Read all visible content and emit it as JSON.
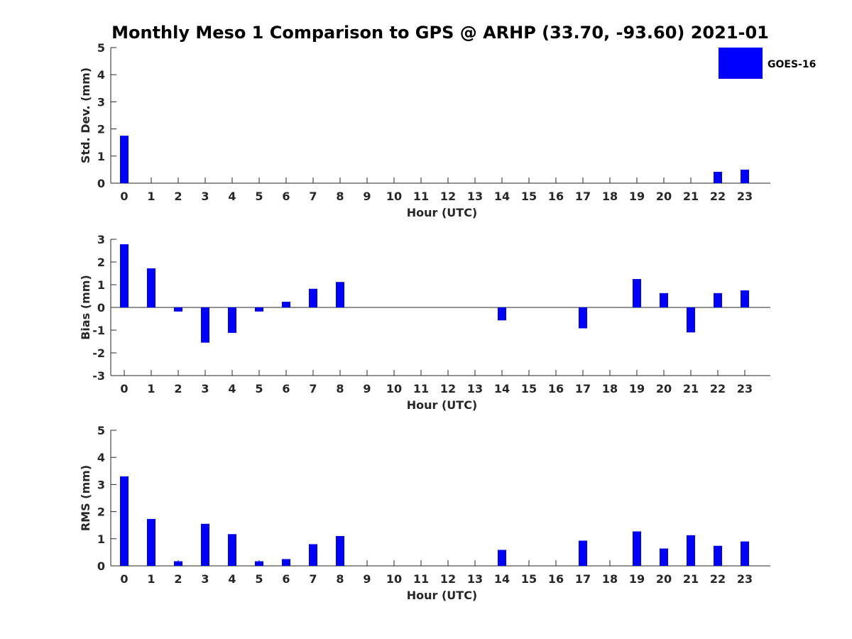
{
  "chart_data": {
    "title": "Monthly Meso 1 Comparison to GPS @ ARHP (33.70, -93.60) 2021-01",
    "legend": {
      "label": "GOES-16",
      "color": "#0000ff",
      "placement": "top-right"
    },
    "bar_color": "#0000ff",
    "panels": [
      {
        "type": "bar",
        "xlabel": "Hour (UTC)",
        "ylabel": "Std. Dev. (mm)",
        "ylim": [
          0,
          5
        ],
        "yticks": [
          0,
          1,
          2,
          3,
          4,
          5
        ],
        "categories": [
          0,
          1,
          2,
          3,
          4,
          5,
          6,
          7,
          8,
          9,
          10,
          11,
          12,
          13,
          14,
          15,
          16,
          17,
          18,
          19,
          20,
          21,
          22,
          23
        ],
        "values": [
          1.75,
          0,
          0,
          0,
          0,
          0,
          0,
          0,
          0,
          0,
          0,
          0,
          0,
          0,
          0,
          0,
          0,
          0,
          0,
          0,
          0,
          0,
          0.42,
          0.5
        ],
        "grid": false
      },
      {
        "type": "bar",
        "xlabel": "Hour (UTC)",
        "ylabel": "Bias (mm)",
        "ylim": [
          -3,
          3
        ],
        "yticks": [
          -3,
          -2,
          -1,
          0,
          1,
          2,
          3
        ],
        "categories": [
          0,
          1,
          2,
          3,
          4,
          5,
          6,
          7,
          8,
          9,
          10,
          11,
          12,
          13,
          14,
          15,
          16,
          17,
          18,
          19,
          20,
          21,
          22,
          23
        ],
        "values": [
          2.78,
          1.72,
          -0.18,
          -1.55,
          -1.12,
          -0.18,
          0.25,
          0.82,
          1.12,
          0,
          0,
          0,
          0,
          0,
          -0.57,
          0,
          0,
          -0.92,
          0,
          1.25,
          0.63,
          -1.1,
          0.63,
          0.75
        ],
        "zero_line": true,
        "grid": false
      },
      {
        "type": "bar",
        "xlabel": "Hour (UTC)",
        "ylabel": "RMS (mm)",
        "ylim": [
          0,
          5
        ],
        "yticks": [
          0,
          1,
          2,
          3,
          4,
          5
        ],
        "categories": [
          0,
          1,
          2,
          3,
          4,
          5,
          6,
          7,
          8,
          9,
          10,
          11,
          12,
          13,
          14,
          15,
          16,
          17,
          18,
          19,
          20,
          21,
          22,
          23
        ],
        "values": [
          3.3,
          1.73,
          0.17,
          1.55,
          1.17,
          0.17,
          0.25,
          0.8,
          1.1,
          0,
          0,
          0,
          0,
          0,
          0.59,
          0,
          0,
          0.93,
          0,
          1.27,
          0.64,
          1.13,
          0.74,
          0.9
        ],
        "grid": false
      }
    ]
  }
}
